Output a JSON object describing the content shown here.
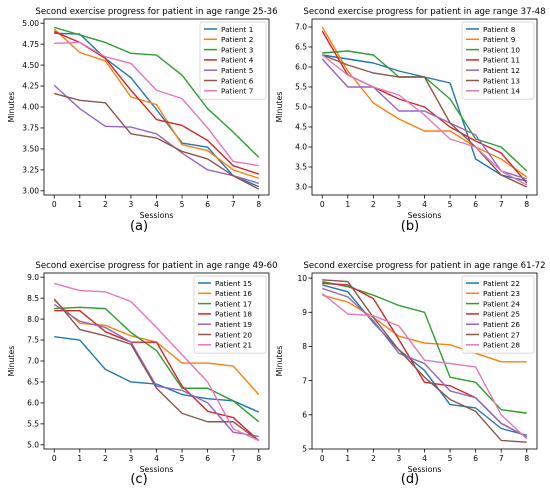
{
  "figure": {
    "panel_captions": [
      "(a)",
      "(b)",
      "(c)",
      "(d)"
    ]
  },
  "colors": [
    "#1f77b4",
    "#ff7f0e",
    "#2ca02c",
    "#d62728",
    "#9467bd",
    "#8c564b",
    "#e377c2"
  ],
  "chart_data": [
    {
      "type": "line",
      "title": "Second exercise progress for patient in age range 25-36",
      "xlabel": "Sessions",
      "ylabel": "Minutes",
      "x": [
        0,
        1,
        2,
        3,
        4,
        5,
        6,
        7,
        8
      ],
      "xticks": [
        "0",
        "1",
        "2",
        "3",
        "4",
        "5",
        "6",
        "7",
        "8"
      ],
      "ylim": [
        2.95,
        5.05
      ],
      "yticks": [
        3.0,
        3.25,
        3.5,
        3.75,
        4.0,
        4.25,
        4.5,
        4.75,
        5.0
      ],
      "yticklabels": [
        "3.00",
        "3.25",
        "3.50",
        "3.75",
        "4.00",
        "4.25",
        "4.50",
        "4.75",
        "5.00"
      ],
      "legend": "top-right",
      "grid": false,
      "series": [
        {
          "name": "Patient 1",
          "values": [
            4.88,
            4.87,
            4.58,
            4.35,
            3.97,
            3.57,
            3.52,
            3.18,
            3.05
          ]
        },
        {
          "name": "Patient 2",
          "values": [
            4.93,
            4.65,
            4.55,
            4.12,
            4.03,
            3.55,
            3.48,
            3.25,
            3.15
          ]
        },
        {
          "name": "Patient 3",
          "values": [
            4.95,
            4.86,
            4.77,
            4.64,
            4.62,
            4.38,
            3.98,
            3.7,
            3.4
          ]
        },
        {
          "name": "Patient 4",
          "values": [
            4.9,
            4.77,
            4.58,
            4.2,
            3.85,
            3.78,
            3.6,
            3.3,
            3.2
          ]
        },
        {
          "name": "Patient 5",
          "values": [
            4.26,
            3.98,
            3.77,
            3.76,
            3.68,
            3.45,
            3.25,
            3.18,
            3.09
          ]
        },
        {
          "name": "Patient 6",
          "values": [
            4.16,
            4.08,
            4.05,
            3.68,
            3.63,
            3.47,
            3.38,
            3.18,
            3.02
          ]
        },
        {
          "name": "Patient 7",
          "values": [
            4.76,
            4.77,
            4.6,
            4.52,
            4.2,
            4.1,
            3.75,
            3.35,
            3.3
          ]
        }
      ]
    },
    {
      "type": "line",
      "title": "Second exercise progress for patient in age range 37-48",
      "xlabel": "Sessions",
      "ylabel": "Minutes",
      "x": [
        0,
        1,
        2,
        3,
        4,
        5,
        6,
        7,
        8
      ],
      "xticks": [
        "0",
        "1",
        "2",
        "3",
        "4",
        "5",
        "6",
        "7",
        "8"
      ],
      "ylim": [
        2.8,
        7.2
      ],
      "yticks": [
        3.0,
        3.5,
        4.0,
        4.5,
        5.0,
        5.5,
        6.0,
        6.5,
        7.0
      ],
      "yticklabels": [
        "3.0",
        "3.5",
        "4.0",
        "4.5",
        "5.0",
        "5.5",
        "6.0",
        "6.5",
        "7.0"
      ],
      "legend": "top-right",
      "grid": false,
      "series": [
        {
          "name": "Patient 8",
          "values": [
            6.3,
            6.2,
            6.1,
            5.9,
            5.75,
            5.6,
            3.7,
            3.3,
            3.15
          ]
        },
        {
          "name": "Patient 9",
          "values": [
            7.0,
            5.9,
            5.1,
            4.7,
            4.4,
            4.4,
            4.0,
            3.7,
            3.25
          ]
        },
        {
          "name": "Patient 10",
          "values": [
            6.35,
            6.4,
            6.3,
            5.75,
            5.75,
            5.2,
            4.2,
            4.0,
            3.4
          ]
        },
        {
          "name": "Patient 11",
          "values": [
            6.9,
            5.8,
            5.5,
            5.2,
            5.0,
            4.5,
            4.15,
            3.85,
            3.1
          ]
        },
        {
          "name": "Patient 12",
          "values": [
            6.2,
            5.5,
            5.5,
            4.9,
            4.9,
            4.6,
            4.3,
            3.4,
            3.2
          ]
        },
        {
          "name": "Patient 13",
          "values": [
            6.3,
            6.05,
            5.85,
            5.75,
            5.75,
            4.6,
            4.0,
            3.3,
            3.0
          ]
        },
        {
          "name": "Patient 14",
          "values": [
            6.3,
            5.8,
            5.5,
            5.3,
            4.8,
            4.2,
            4.0,
            3.4,
            3.05
          ]
        }
      ]
    },
    {
      "type": "line",
      "title": "Second exercise progress for patient in age range 49-60",
      "xlabel": "Sessions",
      "ylabel": "Minutes",
      "x": [
        0,
        1,
        2,
        3,
        4,
        5,
        6,
        7,
        8
      ],
      "xticks": [
        "0",
        "1",
        "2",
        "3",
        "4",
        "5",
        "6",
        "7",
        "8"
      ],
      "ylim": [
        4.9,
        9.1
      ],
      "yticks": [
        5.0,
        5.5,
        6.0,
        6.5,
        7.0,
        7.5,
        8.0,
        8.5,
        9.0
      ],
      "yticklabels": [
        "5.0",
        "5.5",
        "6.0",
        "6.5",
        "7.0",
        "7.5",
        "8.0",
        "8.5",
        "9.0"
      ],
      "legend": "top-right",
      "grid": false,
      "series": [
        {
          "name": "Patient 15",
          "values": [
            7.58,
            7.5,
            6.8,
            6.5,
            6.45,
            6.2,
            6.1,
            6.05,
            5.78
          ]
        },
        {
          "name": "Patient 16",
          "values": [
            8.45,
            7.9,
            7.85,
            7.6,
            7.45,
            6.95,
            6.95,
            6.88,
            6.2
          ]
        },
        {
          "name": "Patient 17",
          "values": [
            8.25,
            8.28,
            8.25,
            7.68,
            7.25,
            6.35,
            6.35,
            6.05,
            5.55
          ]
        },
        {
          "name": "Patient 18",
          "values": [
            8.2,
            8.2,
            7.7,
            7.45,
            7.45,
            6.4,
            5.8,
            5.65,
            5.1
          ]
        },
        {
          "name": "Patient 19",
          "values": [
            8.35,
            7.95,
            7.8,
            7.45,
            6.4,
            6.3,
            6.0,
            5.3,
            5.2
          ]
        },
        {
          "name": "Patient 20",
          "values": [
            8.48,
            7.75,
            7.6,
            7.4,
            6.35,
            5.75,
            5.55,
            5.55,
            5.1
          ]
        },
        {
          "name": "Patient 21",
          "values": [
            8.85,
            8.68,
            8.65,
            8.42,
            7.8,
            7.15,
            6.5,
            5.38,
            5.1
          ]
        }
      ]
    },
    {
      "type": "line",
      "title": "Second exercise progress for patient in age range 61-72",
      "xlabel": "Sessions",
      "ylabel": "Minutes",
      "x": [
        0,
        1,
        2,
        3,
        4,
        5,
        6,
        7,
        8
      ],
      "xticks": [
        "0",
        "1",
        "2",
        "3",
        "4",
        "5",
        "6",
        "7",
        "8"
      ],
      "ylim": [
        5.0,
        10.15
      ],
      "yticks": [
        5,
        6,
        7,
        8,
        9,
        10
      ],
      "yticklabels": [
        "5",
        "6",
        "7",
        "8",
        "9",
        "10"
      ],
      "legend": "top-right",
      "grid": false,
      "series": [
        {
          "name": "Patient 22",
          "values": [
            9.8,
            9.6,
            8.7,
            7.9,
            7.3,
            6.3,
            6.2,
            5.6,
            5.4
          ]
        },
        {
          "name": "Patient 23",
          "values": [
            9.5,
            9.3,
            8.85,
            8.3,
            8.1,
            8.05,
            7.8,
            7.55,
            7.55
          ]
        },
        {
          "name": "Patient 24",
          "values": [
            9.9,
            9.75,
            9.5,
            9.2,
            9.0,
            7.1,
            6.95,
            6.15,
            6.05
          ]
        },
        {
          "name": "Patient 25",
          "values": [
            9.85,
            9.8,
            9.4,
            8.2,
            6.95,
            6.85,
            6.5,
            5.75,
            5.35
          ]
        },
        {
          "name": "Patient 26",
          "values": [
            9.7,
            9.45,
            8.75,
            7.8,
            7.5,
            6.7,
            6.5,
            5.75,
            5.35
          ]
        },
        {
          "name": "Patient 27",
          "values": [
            9.95,
            9.9,
            8.85,
            7.9,
            7.1,
            6.45,
            6.1,
            5.25,
            5.2
          ]
        },
        {
          "name": "Patient 28",
          "values": [
            9.55,
            8.95,
            8.9,
            8.6,
            7.6,
            7.5,
            7.4,
            6.0,
            5.3
          ]
        }
      ]
    }
  ]
}
